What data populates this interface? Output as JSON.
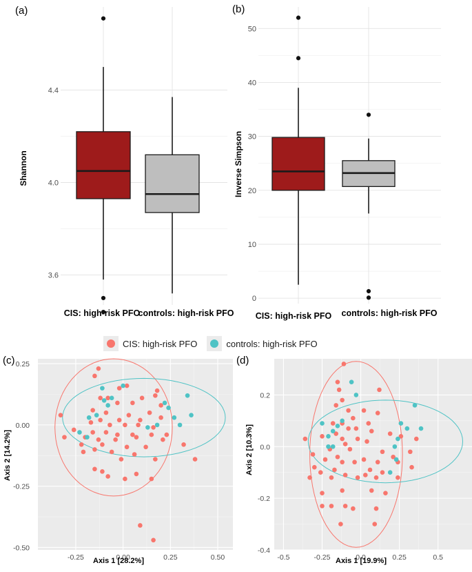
{
  "colors": {
    "cis_fill": "#9e1b1b",
    "controls_fill": "#bebebe",
    "cis_point": "#f8766d",
    "controls_point": "#4fc3c5"
  },
  "legend": {
    "items": [
      {
        "label": "CIS: high-risk PFO",
        "color": "#f8766d"
      },
      {
        "label": "controls: high-risk PFO",
        "color": "#4fc3c5"
      }
    ]
  },
  "chart_data": [
    {
      "panel_label": "(a)",
      "type": "box",
      "ylabel": "Shannon",
      "xlabel": "",
      "categories": [
        "CIS: high-risk PFO",
        "controls: high-risk PFO"
      ],
      "ylim": [
        3.47,
        4.76
      ],
      "yticks": [
        3.6,
        4.0,
        4.4
      ],
      "ytick_labels": [
        "3.6",
        "4.0",
        "4.4"
      ],
      "grid": true,
      "boxes": [
        {
          "name": "CIS: high-risk PFO",
          "q1": 3.93,
          "median": 4.05,
          "q3": 4.22,
          "whisker_low": 3.58,
          "whisker_high": 4.5,
          "outliers": [
            4.71,
            3.5,
            3.44
          ],
          "fill": "#9e1b1b"
        },
        {
          "name": "controls: high-risk PFO",
          "q1": 3.87,
          "median": 3.95,
          "q3": 4.12,
          "whisker_low": 3.52,
          "whisker_high": 4.37,
          "outliers": [],
          "fill": "#bebebe"
        }
      ]
    },
    {
      "panel_label": "(b)",
      "type": "box",
      "ylabel": "Inverse Simpson",
      "xlabel": "",
      "categories": [
        "CIS: high-risk PFO",
        "controls: high-risk PFO"
      ],
      "ylim": [
        -1,
        54
      ],
      "yticks": [
        0,
        10,
        20,
        30,
        40,
        50
      ],
      "ytick_labels": [
        "0",
        "10",
        "20",
        "30",
        "40",
        "50"
      ],
      "grid": true,
      "boxes": [
        {
          "name": "CIS: high-risk PFO",
          "q1": 20.0,
          "median": 23.5,
          "q3": 29.8,
          "whisker_low": 2.5,
          "whisker_high": 39.0,
          "outliers": [
            52.0,
            44.5
          ],
          "fill": "#9e1b1b"
        },
        {
          "name": "controls: high-risk PFO",
          "q1": 20.7,
          "median": 23.2,
          "q3": 25.5,
          "whisker_low": 15.7,
          "whisker_high": 29.6,
          "outliers": [
            34.0,
            1.3,
            0.1
          ],
          "fill": "#bebebe"
        }
      ]
    },
    {
      "panel_label": "(c)",
      "type": "scatter",
      "xlabel": "Axis 1 [28.2%]",
      "ylabel": "Axis 2 [14.2%]",
      "xlim": [
        -0.45,
        0.58
      ],
      "ylim": [
        -0.51,
        0.27
      ],
      "xticks": [
        -0.25,
        0.0,
        0.25,
        0.5
      ],
      "xtick_labels": [
        "-0.25",
        "0.00",
        "0.25",
        "0.50"
      ],
      "yticks": [
        -0.5,
        -0.25,
        0.0,
        0.25
      ],
      "ytick_labels": [
        "-0.50",
        "-0.25",
        "0.00",
        "0.25"
      ],
      "grid": true,
      "ellipses": [
        {
          "group": "CIS: high-risk PFO",
          "cx": -0.05,
          "cy": -0.01,
          "rx": 0.31,
          "ry": 0.28,
          "color": "#f8766d"
        },
        {
          "group": "controls: high-risk PFO",
          "cx": 0.11,
          "cy": 0.03,
          "rx": 0.43,
          "ry": 0.16,
          "color": "#4fc3c5"
        }
      ],
      "series": [
        {
          "name": "CIS: high-risk PFO",
          "color": "#f8766d",
          "points": [
            [
              -0.13,
              0.23
            ],
            [
              -0.15,
              0.2
            ],
            [
              -0.02,
              0.15
            ],
            [
              0.02,
              0.16
            ],
            [
              0.18,
              0.14
            ],
            [
              -0.12,
              0.11
            ],
            [
              -0.08,
              0.11
            ],
            [
              -0.03,
              0.09
            ],
            [
              0.05,
              0.09
            ],
            [
              0.1,
              0.11
            ],
            [
              0.17,
              0.12
            ],
            [
              0.2,
              0.08
            ],
            [
              -0.16,
              0.06
            ],
            [
              -0.09,
              0.05
            ],
            [
              0.03,
              0.04
            ],
            [
              0.14,
              0.05
            ],
            [
              -0.33,
              0.04
            ],
            [
              -0.12,
              0.02
            ],
            [
              -0.02,
              0.02
            ],
            [
              0.09,
              0.02
            ],
            [
              0.2,
              0.03
            ],
            [
              -0.17,
              0.01
            ],
            [
              -0.07,
              0.0
            ],
            [
              0.01,
              0.0
            ],
            [
              0.08,
              0.0
            ],
            [
              0.16,
              -0.01
            ],
            [
              -0.26,
              -0.02
            ],
            [
              -0.16,
              -0.03
            ],
            [
              -0.09,
              -0.03
            ],
            [
              -0.03,
              -0.04
            ],
            [
              0.05,
              -0.04
            ],
            [
              0.15,
              -0.04
            ],
            [
              0.23,
              -0.04
            ],
            [
              -0.31,
              -0.05
            ],
            [
              -0.2,
              -0.05
            ],
            [
              -0.13,
              -0.06
            ],
            [
              -0.04,
              -0.06
            ],
            [
              0.07,
              -0.05
            ],
            [
              0.21,
              -0.06
            ],
            [
              -0.22,
              -0.08
            ],
            [
              -0.11,
              -0.08
            ],
            [
              0.02,
              -0.09
            ],
            [
              0.12,
              -0.09
            ],
            [
              0.32,
              -0.08
            ],
            [
              -0.21,
              -0.11
            ],
            [
              -0.15,
              -0.1
            ],
            [
              -0.06,
              -0.11
            ],
            [
              0.06,
              -0.12
            ],
            [
              -0.01,
              -0.14
            ],
            [
              0.17,
              -0.14
            ],
            [
              0.38,
              -0.14
            ],
            [
              -0.15,
              -0.18
            ],
            [
              -0.11,
              -0.19
            ],
            [
              -0.08,
              -0.21
            ],
            [
              0.07,
              -0.2
            ],
            [
              0.01,
              -0.22
            ],
            [
              0.15,
              -0.22
            ],
            [
              0.09,
              -0.41
            ],
            [
              0.16,
              -0.47
            ]
          ]
        },
        {
          "name": "controls: high-risk PFO",
          "color": "#4fc3c5",
          "points": [
            [
              -0.11,
              0.15
            ],
            [
              0.0,
              0.16
            ],
            [
              0.34,
              0.12
            ],
            [
              -0.06,
              0.11
            ],
            [
              -0.1,
              0.1
            ],
            [
              0.22,
              0.09
            ],
            [
              0.24,
              0.07
            ],
            [
              -0.08,
              0.08
            ],
            [
              -0.14,
              0.04
            ],
            [
              0.36,
              0.04
            ],
            [
              -0.18,
              0.03
            ],
            [
              0.27,
              0.03
            ],
            [
              0.3,
              0.0
            ],
            [
              0.13,
              -0.01
            ],
            [
              0.18,
              0.0
            ],
            [
              -0.23,
              -0.03
            ],
            [
              -0.19,
              -0.05
            ]
          ]
        }
      ]
    },
    {
      "panel_label": "(d)",
      "type": "scatter",
      "xlabel": "Axis 1 [19.9%]",
      "ylabel": "Axis 2 [10.3%]",
      "xlim": [
        -0.56,
        0.72
      ],
      "ylim": [
        -0.4,
        0.34
      ],
      "xticks": [
        -0.5,
        -0.25,
        0.0,
        0.25,
        0.5
      ],
      "xtick_labels": [
        "-0.5",
        "-0.25",
        "0.0",
        "0.25",
        "0.5"
      ],
      "yticks": [
        -0.4,
        -0.2,
        0.0,
        0.2
      ],
      "ytick_labels": [
        "-0.4",
        "-0.2",
        "0.0",
        "0.2"
      ],
      "grid": true,
      "ellipses": [
        {
          "group": "CIS: high-risk PFO",
          "cx": -0.03,
          "cy": -0.03,
          "rx": 0.3,
          "ry": 0.36,
          "color": "#f8766d"
        },
        {
          "group": "controls: high-risk PFO",
          "cx": 0.16,
          "cy": 0.02,
          "rx": 0.5,
          "ry": 0.16,
          "color": "#4fc3c5"
        }
      ],
      "series": [
        {
          "name": "CIS: high-risk PFO",
          "color": "#f8766d",
          "points": [
            [
              -0.11,
              0.32
            ],
            [
              -0.15,
              0.25
            ],
            [
              -0.14,
              0.22
            ],
            [
              0.12,
              0.22
            ],
            [
              -0.12,
              0.18
            ],
            [
              -0.16,
              0.16
            ],
            [
              -0.08,
              0.14
            ],
            [
              0.02,
              0.14
            ],
            [
              0.11,
              0.13
            ],
            [
              -0.05,
              0.11
            ],
            [
              -0.18,
              0.09
            ],
            [
              -0.12,
              0.09
            ],
            [
              0.05,
              0.09
            ],
            [
              -0.08,
              0.07
            ],
            [
              -0.03,
              0.07
            ],
            [
              -0.16,
              0.05
            ],
            [
              0.07,
              0.06
            ],
            [
              0.19,
              0.05
            ],
            [
              -0.25,
              0.04
            ],
            [
              -0.12,
              0.03
            ],
            [
              -0.02,
              0.03
            ],
            [
              0.26,
              0.04
            ],
            [
              0.36,
              0.03
            ],
            [
              -0.36,
              0.03
            ],
            [
              -0.1,
              0.01
            ],
            [
              0.04,
              0.02
            ],
            [
              -0.2,
              -0.01
            ],
            [
              -0.07,
              -0.01
            ],
            [
              0.14,
              -0.02
            ],
            [
              0.32,
              -0.02
            ],
            [
              -0.31,
              -0.03
            ],
            [
              -0.15,
              -0.04
            ],
            [
              0.02,
              -0.05
            ],
            [
              0.21,
              -0.04
            ],
            [
              -0.23,
              -0.05
            ],
            [
              -0.12,
              -0.06
            ],
            [
              -0.04,
              -0.06
            ],
            [
              0.11,
              -0.06
            ],
            [
              0.24,
              -0.06
            ],
            [
              -0.3,
              -0.08
            ],
            [
              -0.17,
              -0.09
            ],
            [
              0.06,
              -0.09
            ],
            [
              0.33,
              -0.08
            ],
            [
              -0.26,
              -0.1
            ],
            [
              -0.1,
              -0.11
            ],
            [
              0.03,
              -0.11
            ],
            [
              0.14,
              -0.1
            ],
            [
              -0.33,
              -0.12
            ],
            [
              -0.19,
              -0.12
            ],
            [
              -0.02,
              -0.12
            ],
            [
              0.1,
              -0.12
            ],
            [
              0.24,
              -0.12
            ],
            [
              -0.25,
              -0.18
            ],
            [
              -0.12,
              -0.17
            ],
            [
              0.07,
              -0.17
            ],
            [
              0.16,
              -0.18
            ],
            [
              -0.25,
              -0.23
            ],
            [
              -0.19,
              -0.23
            ],
            [
              -0.1,
              -0.23
            ],
            [
              -0.05,
              -0.24
            ],
            [
              0.1,
              -0.24
            ],
            [
              -0.13,
              -0.3
            ],
            [
              0.09,
              -0.3
            ]
          ]
        },
        {
          "name": "controls: high-risk PFO",
          "color": "#4fc3c5",
          "points": [
            [
              -0.06,
              0.25
            ],
            [
              -0.03,
              0.2
            ],
            [
              0.35,
              0.16
            ],
            [
              -0.12,
              0.1
            ],
            [
              -0.25,
              0.09
            ],
            [
              -0.15,
              0.08
            ],
            [
              0.26,
              0.09
            ],
            [
              0.3,
              0.07
            ],
            [
              0.39,
              0.07
            ],
            [
              -0.18,
              0.06
            ],
            [
              -0.21,
              0.04
            ],
            [
              0.24,
              0.03
            ],
            [
              -0.18,
              0.0
            ],
            [
              -0.21,
              0.0
            ],
            [
              0.22,
              0.0
            ],
            [
              0.23,
              -0.05
            ],
            [
              0.19,
              -0.1
            ]
          ]
        }
      ]
    }
  ]
}
